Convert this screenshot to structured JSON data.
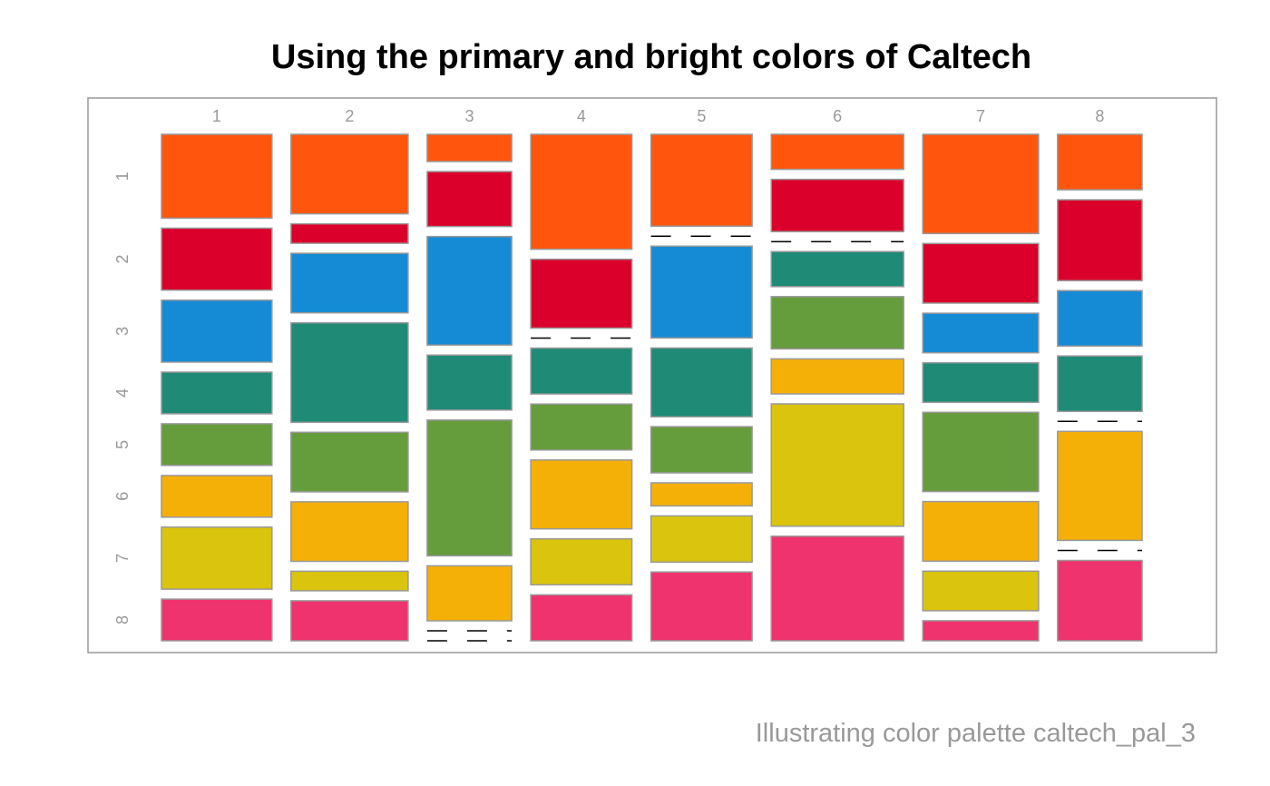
{
  "chart_data": {
    "type": "mosaic",
    "title": "Using the primary and bright colors of Caltech",
    "caption": "Illustrating color palette caltech_pal_3",
    "x_categories": [
      "1",
      "2",
      "3",
      "4",
      "5",
      "6",
      "7",
      "8"
    ],
    "y_categories": [
      "1",
      "2",
      "3",
      "4",
      "5",
      "6",
      "7",
      "8"
    ],
    "palette": [
      "#FF550D",
      "#DA002B",
      "#168BD5",
      "#1F8A76",
      "#659C3C",
      "#F5B008",
      "#DAC40D",
      "#EF336E"
    ],
    "column_proportions": [
      0.166,
      0.176,
      0.127,
      0.152,
      0.152,
      0.199,
      0.174,
      0.127
    ],
    "cell_proportions": [
      [
        0.165,
        0.122,
        0.122,
        0.082,
        0.082,
        0.082,
        0.122,
        0.082
      ],
      [
        0.163,
        0.04,
        0.122,
        0.204,
        0.122,
        0.122,
        0.04,
        0.082
      ],
      [
        0.057,
        0.115,
        0.227,
        0.115,
        0.284,
        0.115,
        0.0,
        0.0
      ],
      [
        0.24,
        0.144,
        0.0,
        0.096,
        0.096,
        0.144,
        0.096,
        0.096
      ],
      [
        0.195,
        0.0,
        0.195,
        0.146,
        0.098,
        0.049,
        0.098,
        0.146
      ],
      [
        0.075,
        0.112,
        0.0,
        0.075,
        0.112,
        0.075,
        0.262,
        0.224
      ],
      [
        0.208,
        0.125,
        0.083,
        0.083,
        0.166,
        0.125,
        0.083,
        0.042
      ],
      [
        0.118,
        0.172,
        0.118,
        0.118,
        0.0,
        0.232,
        0.0,
        0.171
      ]
    ]
  }
}
